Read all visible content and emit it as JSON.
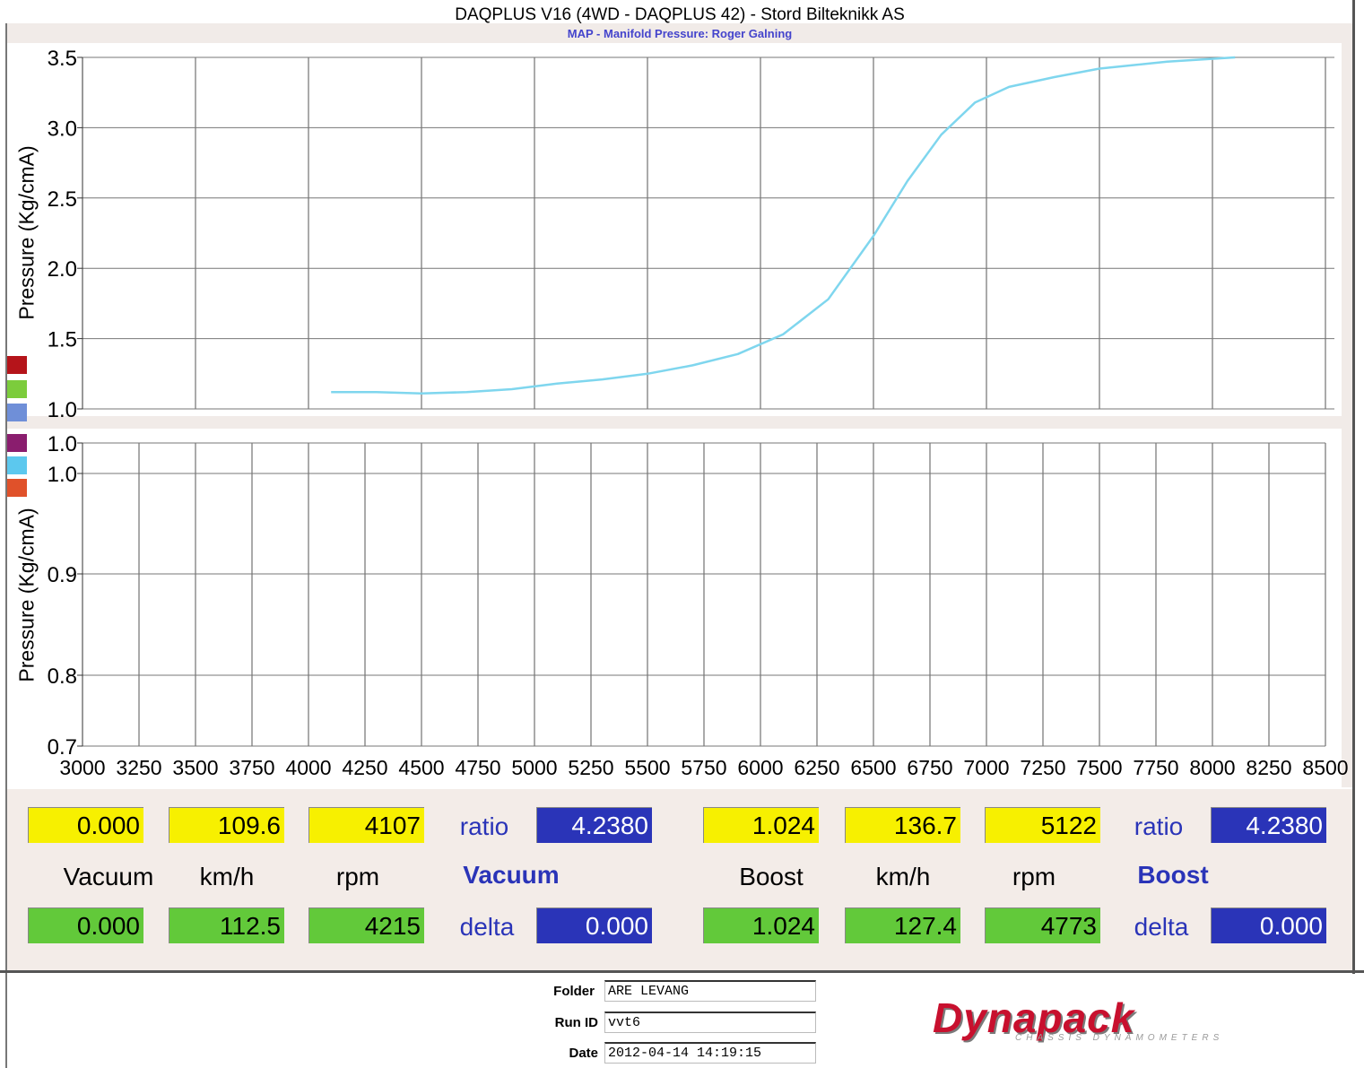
{
  "title": "DAQPLUS V16 (4WD - DAQPLUS 42) - Stord Bilteknikk AS",
  "subtitle": "MAP - Manifold Pressure: Roger Galning",
  "chart_data": [
    {
      "type": "line",
      "ylabel": "Pressure (Kg/cmA)",
      "xlim": [
        3000,
        8500
      ],
      "ylim": [
        1.0,
        3.5
      ],
      "yticks": [
        "3.5",
        "3.0",
        "2.5",
        "2.0",
        "1.5",
        "1.0"
      ],
      "grid": true,
      "series": [
        {
          "color": "#7fd6ee",
          "x": [
            4100,
            4300,
            4500,
            4700,
            4900,
            5100,
            5300,
            5500,
            5700,
            5900,
            6100,
            6300,
            6500,
            6650,
            6800,
            6950,
            7100,
            7300,
            7500,
            7800,
            8100
          ],
          "y": [
            1.12,
            1.12,
            1.11,
            1.12,
            1.14,
            1.18,
            1.21,
            1.25,
            1.31,
            1.39,
            1.53,
            1.78,
            2.23,
            2.62,
            2.95,
            3.18,
            3.29,
            3.36,
            3.42,
            3.47,
            3.5
          ]
        }
      ]
    },
    {
      "type": "line",
      "ylabel": "Pressure (Kg/cmA)",
      "xlim": [
        3000,
        8500
      ],
      "ylim": [
        0.7,
        1.0
      ],
      "yticks": [
        "1.0",
        "1.0",
        "0.9",
        "0.8",
        "0.7"
      ],
      "xticks": [
        "3000",
        "3250",
        "3500",
        "3750",
        "4000",
        "4250",
        "4500",
        "4750",
        "5000",
        "5250",
        "5500",
        "5750",
        "6000",
        "6250",
        "6500",
        "6750",
        "7000",
        "7250",
        "7500",
        "7750",
        "8000",
        "8250",
        "8500"
      ],
      "grid": true
    }
  ],
  "legend_colors": [
    "#b5141a",
    "#7ccc3c",
    "#6f8fd8",
    "#8a1d6e",
    "#5cc8ee",
    "#e0512a"
  ],
  "readout": {
    "left": {
      "vacuum_value": "0.000",
      "kmh_value": "109.6",
      "rpm_value": "4107",
      "ratio_value": "4.2380",
      "vacuum_label": "Vacuum",
      "kmh_label": "km/h",
      "rpm_label": "rpm",
      "title": "Vacuum",
      "vacuum_value2": "0.000",
      "kmh_value2": "112.5",
      "rpm_value2": "4215",
      "delta_value": "0.000",
      "ratio_label": "ratio",
      "delta_label": "delta"
    },
    "right": {
      "boost_value": "1.024",
      "kmh_value": "136.7",
      "rpm_value": "5122",
      "ratio_value": "4.2380",
      "boost_label": "Boost",
      "kmh_label": "km/h",
      "rpm_label": "rpm",
      "title": "Boost",
      "boost_value2": "1.024",
      "kmh_value2": "127.4",
      "rpm_value2": "4773",
      "delta_value": "0.000",
      "ratio_label": "ratio",
      "delta_label": "delta"
    }
  },
  "info": {
    "folder_label": "Folder",
    "folder_value": "ARE LEVANG",
    "runid_label": "Run ID",
    "runid_value": "vvt6",
    "date_label": "Date",
    "date_value": "2012-04-14 14:19:15"
  },
  "logo": {
    "name": "Dynapack",
    "tagline": "CHASSIS DYNAMOMETERS"
  }
}
